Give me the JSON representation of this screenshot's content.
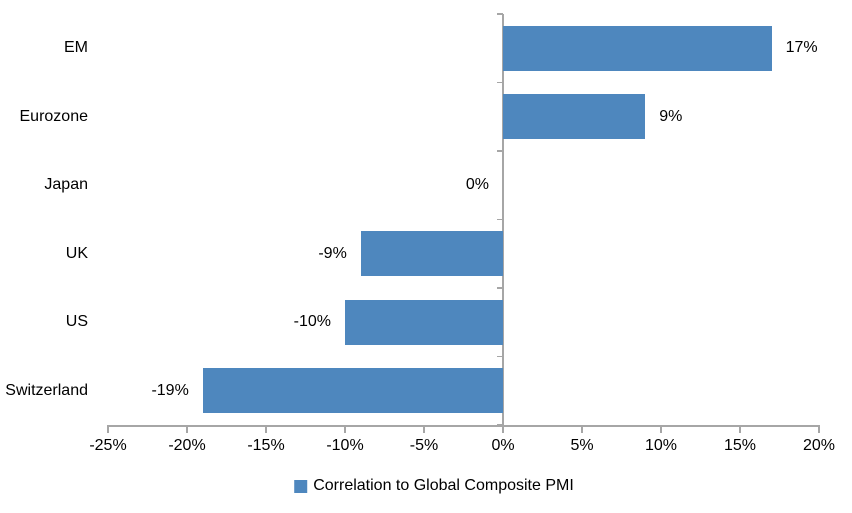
{
  "chart": {
    "background_color": "#ffffff",
    "bar_color": "#4e87be",
    "axis_color": "#a6a6a6",
    "text_color": "#000000"
  },
  "chart_data": {
    "type": "bar",
    "orientation": "horizontal",
    "title": "",
    "xlabel": "",
    "ylabel": "",
    "grid": false,
    "categories": [
      "EM",
      "Eurozone",
      "Japan",
      "UK",
      "US",
      "Switzerland"
    ],
    "series": [
      {
        "name": "Correlation to Global Composite PMI",
        "values": [
          17,
          9,
          0,
          -9,
          -10,
          -19
        ],
        "value_labels": [
          "17%",
          "9%",
          "0%",
          "-9%",
          "-10%",
          "-19%"
        ]
      }
    ],
    "xlim": [
      -25,
      20
    ],
    "x_tick_step": 5,
    "x_ticks": [
      -25,
      -20,
      -15,
      -10,
      -5,
      0,
      5,
      10,
      15,
      20
    ],
    "x_tick_labels": [
      "-25%",
      "-20%",
      "-15%",
      "-10%",
      "-5%",
      "0%",
      "5%",
      "10%",
      "15%",
      "20%"
    ],
    "legend": {
      "position": "bottom",
      "label": "Correlation to Global Composite PMI",
      "swatch_color": "#4e87be"
    }
  }
}
